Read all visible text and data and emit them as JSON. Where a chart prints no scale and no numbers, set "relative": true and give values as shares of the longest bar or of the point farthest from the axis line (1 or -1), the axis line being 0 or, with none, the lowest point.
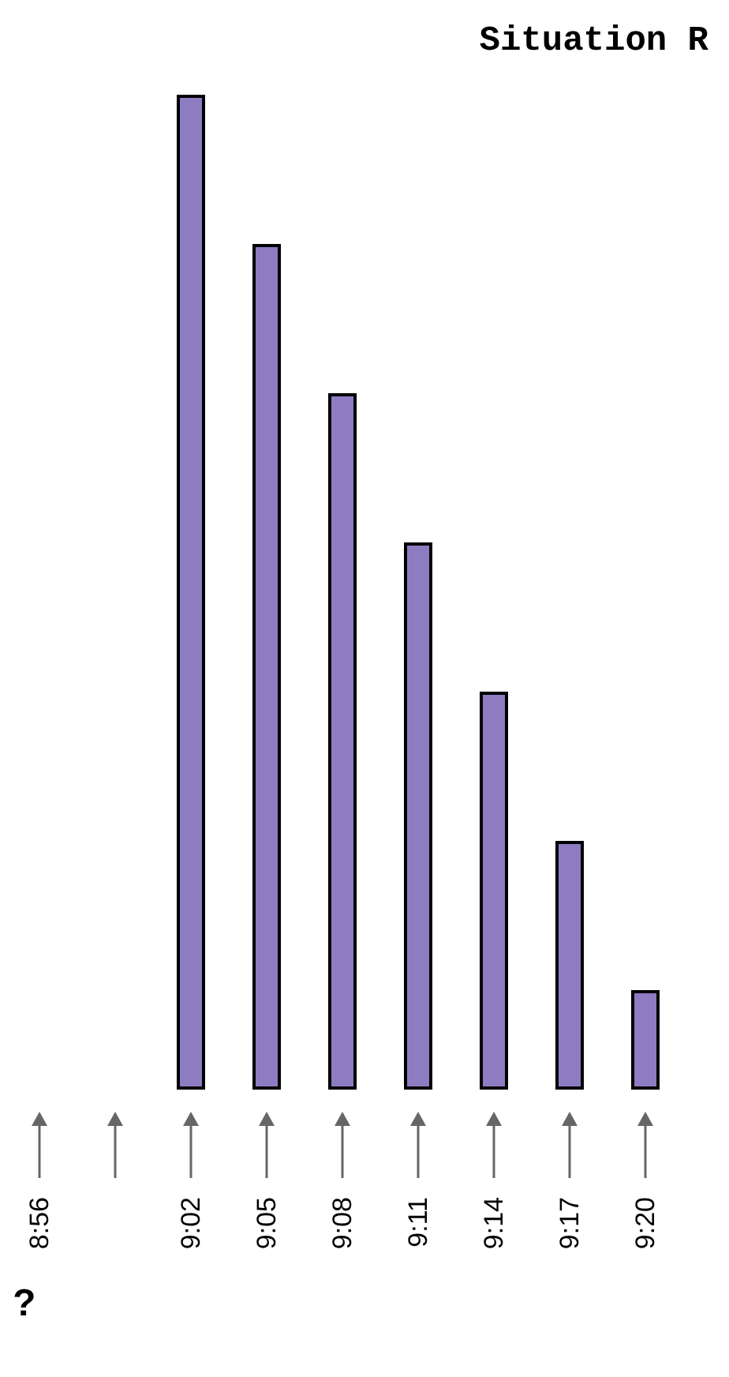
{
  "chart_data": {
    "type": "bar",
    "title": "Situation R",
    "relative": true,
    "categories": [
      "8:56",
      null,
      "9:02",
      "9:05",
      "9:08",
      "9:11",
      "9:14",
      "9:17",
      "9:20"
    ],
    "values": [
      0,
      0,
      1,
      0.85,
      0.7,
      0.55,
      0.4,
      0.25,
      0.1
    ],
    "color": "#8e7cc3",
    "grid": false,
    "annotations": [
      "?"
    ]
  }
}
